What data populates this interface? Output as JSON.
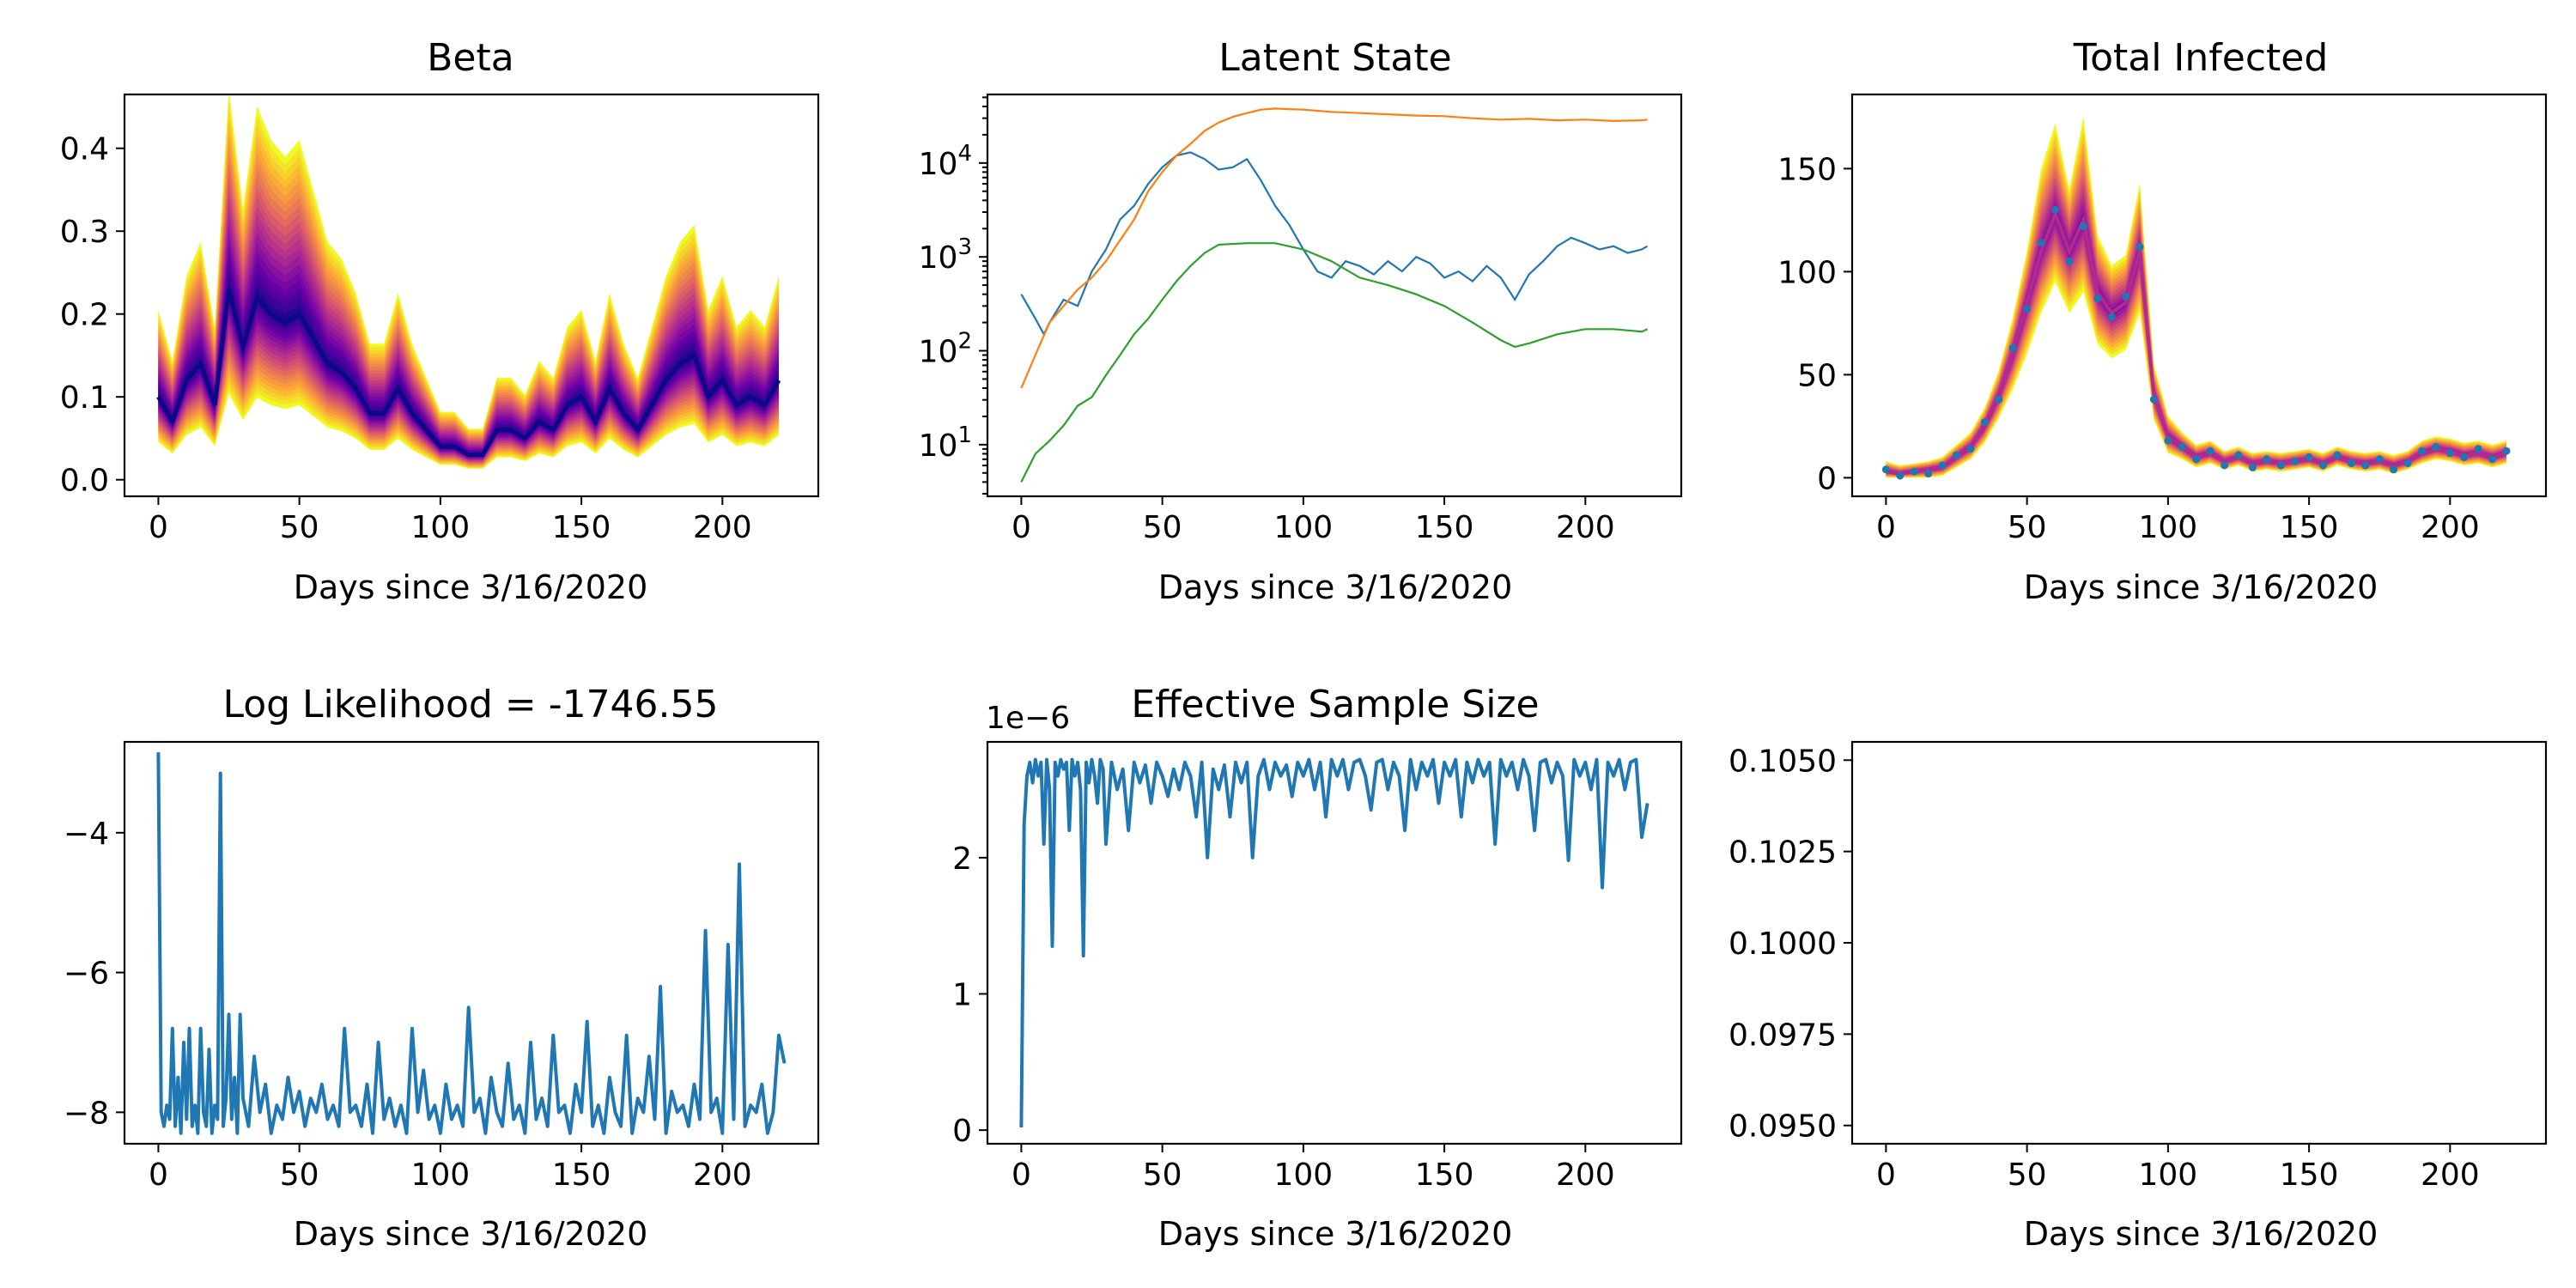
{
  "figure": {
    "panels": {
      "beta": {
        "title": "Beta",
        "xlabel": "Days since 3/16/2020"
      },
      "latent": {
        "title": "Latent State",
        "xlabel": "Days since 3/16/2020"
      },
      "infected": {
        "title": "Total Infected",
        "xlabel": "Days since 3/16/2020"
      },
      "loglik": {
        "title": "Log Likelihood = -1746.55",
        "xlabel": "Days since 3/16/2020"
      },
      "ess": {
        "title": "Effective Sample Size",
        "xlabel": "Days since 3/16/2020",
        "offset_label": "1e−6"
      },
      "empty": {
        "title": "",
        "xlabel": "Days since 3/16/2020"
      }
    }
  },
  "chart_data": [
    {
      "id": "beta",
      "type": "area",
      "title": "Beta",
      "xlabel": "Days since 3/16/2020",
      "ylabel": "",
      "xlim": [
        -12,
        234
      ],
      "ylim": [
        -0.02,
        0.465
      ],
      "xticks": [
        0,
        50,
        100,
        150,
        200
      ],
      "yticks": [
        0.0,
        0.1,
        0.2,
        0.3,
        0.4
      ],
      "ytick_labels": [
        "0.0",
        "0.1",
        "0.2",
        "0.3",
        "0.4"
      ],
      "colormap": [
        "#0d0887",
        "#6a00a8",
        "#b12a90",
        "#e16462",
        "#fca636",
        "#f0f921"
      ],
      "band_scale": {
        "lower_frac": 0.55,
        "upper_frac": 1.05
      },
      "x": [
        0,
        5,
        10,
        15,
        20,
        25,
        30,
        35,
        40,
        45,
        50,
        55,
        60,
        65,
        70,
        75,
        80,
        85,
        90,
        95,
        100,
        105,
        110,
        115,
        120,
        125,
        130,
        135,
        140,
        145,
        150,
        155,
        160,
        165,
        170,
        175,
        180,
        185,
        190,
        195,
        200,
        205,
        210,
        215,
        220
      ],
      "median": [
        0.1,
        0.07,
        0.12,
        0.14,
        0.09,
        0.23,
        0.16,
        0.22,
        0.2,
        0.19,
        0.2,
        0.17,
        0.14,
        0.13,
        0.11,
        0.08,
        0.08,
        0.11,
        0.08,
        0.06,
        0.04,
        0.04,
        0.03,
        0.03,
        0.06,
        0.06,
        0.05,
        0.07,
        0.06,
        0.09,
        0.1,
        0.07,
        0.11,
        0.08,
        0.06,
        0.09,
        0.12,
        0.14,
        0.15,
        0.1,
        0.12,
        0.09,
        0.1,
        0.09,
        0.12
      ]
    },
    {
      "id": "latent",
      "type": "line",
      "title": "Latent State",
      "xlabel": "Days since 3/16/2020",
      "ylabel": "",
      "yscale": "log",
      "xlim": [
        -12,
        234
      ],
      "ylim_log10": [
        0.45,
        4.73
      ],
      "xticks": [
        0,
        50,
        100,
        150,
        200
      ],
      "yticks": [
        1,
        2,
        3,
        4
      ],
      "ytick_labels": [
        "10^1",
        "10^2",
        "10^3",
        "10^4"
      ],
      "series": [
        {
          "color": "#1f77b4",
          "x": [
            0,
            5,
            8,
            10,
            15,
            20,
            25,
            30,
            35,
            40,
            45,
            50,
            55,
            60,
            65,
            70,
            75,
            80,
            85,
            90,
            95,
            100,
            105,
            110,
            115,
            120,
            125,
            130,
            135,
            140,
            145,
            150,
            155,
            160,
            165,
            170,
            175,
            180,
            185,
            190,
            195,
            200,
            205,
            210,
            215,
            220,
            222
          ],
          "y": [
            400,
            220,
            150,
            200,
            350,
            300,
            700,
            1200,
            2500,
            3500,
            6000,
            9000,
            12000,
            13000,
            11000,
            8500,
            9000,
            11000,
            6500,
            3500,
            2200,
            1200,
            700,
            600,
            900,
            800,
            650,
            900,
            700,
            1000,
            850,
            600,
            700,
            550,
            800,
            600,
            350,
            650,
            900,
            1300,
            1600,
            1400,
            1200,
            1300,
            1100,
            1200,
            1300
          ]
        },
        {
          "color": "#ff7f0e",
          "x": [
            0,
            5,
            10,
            15,
            20,
            25,
            30,
            35,
            40,
            45,
            50,
            55,
            60,
            65,
            70,
            75,
            80,
            85,
            90,
            95,
            100,
            110,
            120,
            130,
            140,
            150,
            160,
            170,
            180,
            190,
            200,
            210,
            220,
            222
          ],
          "y": [
            40,
            90,
            200,
            300,
            450,
            600,
            900,
            1500,
            2500,
            5000,
            8000,
            12000,
            16000,
            22000,
            27000,
            31000,
            34000,
            37000,
            38000,
            37500,
            37000,
            35000,
            34000,
            33000,
            32000,
            31500,
            30000,
            29000,
            29500,
            28500,
            29000,
            28000,
            28500,
            29000
          ]
        },
        {
          "color": "#2ca02c",
          "x": [
            0,
            5,
            10,
            15,
            20,
            25,
            30,
            35,
            40,
            45,
            50,
            55,
            60,
            65,
            70,
            80,
            90,
            100,
            110,
            120,
            130,
            140,
            150,
            160,
            170,
            175,
            180,
            190,
            200,
            210,
            220,
            222
          ],
          "y": [
            4,
            8,
            11,
            16,
            26,
            32,
            55,
            90,
            150,
            220,
            350,
            550,
            800,
            1100,
            1350,
            1400,
            1400,
            1200,
            900,
            600,
            500,
            400,
            300,
            200,
            130,
            110,
            120,
            150,
            170,
            170,
            160,
            170
          ]
        }
      ]
    },
    {
      "id": "infected",
      "type": "line",
      "title": "Total Infected",
      "xlabel": "Days since 3/16/2020",
      "ylabel": "",
      "xlim": [
        -12,
        234
      ],
      "ylim": [
        -9,
        186
      ],
      "xticks": [
        0,
        50,
        100,
        150,
        200
      ],
      "yticks": [
        0,
        50,
        100,
        150
      ],
      "ytick_labels": [
        "0",
        "50",
        "100",
        "150"
      ],
      "band_color_inner": "#b12a90",
      "band_color_outer": "#f0f921",
      "point_color": "#1f77b4",
      "x": [
        0,
        5,
        10,
        15,
        20,
        25,
        30,
        35,
        40,
        45,
        50,
        55,
        60,
        65,
        70,
        75,
        80,
        85,
        90,
        95,
        100,
        105,
        110,
        115,
        120,
        125,
        130,
        135,
        140,
        145,
        150,
        155,
        160,
        165,
        170,
        175,
        180,
        185,
        190,
        195,
        200,
        205,
        210,
        215,
        220
      ],
      "mean": [
        3,
        2,
        3,
        4,
        5,
        10,
        15,
        25,
        40,
        60,
        85,
        110,
        128,
        110,
        125,
        90,
        80,
        85,
        110,
        40,
        20,
        15,
        10,
        12,
        8,
        10,
        7,
        8,
        7,
        8,
        9,
        7,
        10,
        8,
        7,
        8,
        6,
        8,
        12,
        14,
        13,
        11,
        12,
        10,
        12
      ],
      "upper": [
        8,
        6,
        7,
        8,
        10,
        16,
        22,
        34,
        52,
        78,
        110,
        150,
        172,
        140,
        175,
        118,
        103,
        108,
        143,
        55,
        30,
        22,
        16,
        18,
        13,
        15,
        12,
        13,
        12,
        13,
        14,
        12,
        15,
        13,
        12,
        13,
        11,
        13,
        18,
        20,
        19,
        17,
        18,
        16,
        18
      ],
      "lower": [
        0,
        0,
        0,
        0,
        1,
        5,
        9,
        17,
        29,
        43,
        60,
        80,
        95,
        80,
        90,
        65,
        58,
        62,
        80,
        28,
        12,
        9,
        5,
        7,
        4,
        6,
        3,
        4,
        3,
        4,
        5,
        3,
        6,
        4,
        3,
        4,
        2,
        4,
        7,
        9,
        8,
        6,
        7,
        5,
        7
      ],
      "observed": [
        4,
        1,
        3,
        2,
        6,
        11,
        14,
        27,
        38,
        63,
        82,
        114,
        130,
        105,
        122,
        87,
        78,
        88,
        112,
        38,
        18,
        15,
        9,
        13,
        6,
        11,
        5,
        9,
        6,
        8,
        10,
        6,
        11,
        7,
        6,
        9,
        4,
        7,
        13,
        15,
        12,
        10,
        14,
        9,
        13
      ]
    },
    {
      "id": "loglik",
      "type": "line",
      "title": "Log Likelihood = -1746.55",
      "xlabel": "Days since 3/16/2020",
      "ylabel": "",
      "xlim": [
        -12,
        234
      ],
      "ylim": [
        -8.45,
        -2.7
      ],
      "xticks": [
        0,
        50,
        100,
        150,
        200
      ],
      "yticks": [
        -4,
        -6,
        -8
      ],
      "ytick_labels": [
        "−4",
        "−6",
        "−8"
      ],
      "color": "#1f77b4",
      "x": [
        0,
        1,
        2,
        3,
        4,
        5,
        6,
        7,
        8,
        9,
        10,
        11,
        12,
        13,
        14,
        15,
        16,
        17,
        18,
        19,
        20,
        21,
        22,
        23,
        24,
        25,
        26,
        27,
        28,
        29,
        30,
        32,
        34,
        36,
        38,
        40,
        42,
        44,
        46,
        48,
        50,
        52,
        54,
        56,
        58,
        60,
        62,
        64,
        66,
        68,
        70,
        72,
        74,
        76,
        78,
        80,
        82,
        84,
        86,
        88,
        90,
        92,
        94,
        96,
        98,
        100,
        102,
        104,
        106,
        108,
        110,
        112,
        114,
        116,
        118,
        120,
        122,
        124,
        126,
        128,
        130,
        132,
        134,
        136,
        138,
        140,
        142,
        144,
        146,
        148,
        150,
        152,
        154,
        156,
        158,
        160,
        162,
        164,
        166,
        168,
        170,
        172,
        174,
        176,
        178,
        180,
        182,
        184,
        186,
        188,
        190,
        192,
        194,
        196,
        198,
        200,
        202,
        204,
        206,
        208,
        210,
        212,
        214,
        216,
        218,
        220,
        222
      ],
      "y": [
        -2.85,
        -8.0,
        -8.2,
        -7.9,
        -8.1,
        -6.8,
        -8.2,
        -7.5,
        -8.3,
        -7.0,
        -8.1,
        -6.8,
        -8.2,
        -7.9,
        -8.3,
        -6.8,
        -8.0,
        -8.2,
        -7.1,
        -8.3,
        -7.9,
        -8.1,
        -3.15,
        -8.2,
        -7.8,
        -6.6,
        -8.1,
        -7.5,
        -8.3,
        -6.6,
        -7.8,
        -8.2,
        -7.2,
        -8.0,
        -7.6,
        -8.3,
        -7.9,
        -8.1,
        -7.5,
        -8.0,
        -7.7,
        -8.2,
        -7.8,
        -8.0,
        -7.6,
        -8.1,
        -7.9,
        -8.2,
        -6.8,
        -8.0,
        -7.9,
        -8.2,
        -7.6,
        -8.3,
        -7.0,
        -8.1,
        -7.8,
        -8.2,
        -7.9,
        -8.3,
        -6.8,
        -8.0,
        -7.4,
        -8.1,
        -7.9,
        -8.3,
        -7.6,
        -8.1,
        -7.9,
        -8.2,
        -6.5,
        -8.0,
        -7.8,
        -8.3,
        -7.5,
        -8.0,
        -8.2,
        -7.3,
        -8.1,
        -7.9,
        -8.3,
        -7.0,
        -8.1,
        -7.8,
        -8.2,
        -6.9,
        -8.0,
        -7.9,
        -8.3,
        -7.6,
        -8.0,
        -6.7,
        -8.2,
        -7.9,
        -8.3,
        -7.5,
        -8.0,
        -8.2,
        -6.9,
        -8.3,
        -7.8,
        -8.0,
        -7.2,
        -8.1,
        -6.2,
        -8.3,
        -7.7,
        -8.0,
        -7.9,
        -8.2,
        -7.6,
        -8.1,
        -5.4,
        -8.0,
        -7.8,
        -8.3,
        -5.6,
        -8.1,
        -4.45,
        -8.2,
        -7.9,
        -8.0,
        -7.6,
        -8.3,
        -8.0,
        -6.9,
        -7.3
      ]
    },
    {
      "id": "ess",
      "type": "line",
      "title": "Effective Sample Size",
      "xlabel": "Days since 3/16/2020",
      "ylabel": "",
      "xlim": [
        -12,
        234
      ],
      "ylim": [
        -0.1,
        2.85
      ],
      "y_scale_label": "1e−6",
      "xticks": [
        0,
        50,
        100,
        150,
        200
      ],
      "yticks": [
        0,
        1,
        2
      ],
      "ytick_labels": [
        "0",
        "1",
        "2"
      ],
      "color": "#1f77b4",
      "x": [
        0,
        1,
        2,
        3,
        4,
        5,
        6,
        7,
        8,
        9,
        10,
        11,
        12,
        13,
        14,
        15,
        16,
        17,
        18,
        19,
        20,
        21,
        22,
        23,
        24,
        25,
        26,
        27,
        28,
        29,
        30,
        32,
        34,
        36,
        38,
        40,
        42,
        44,
        46,
        48,
        50,
        52,
        54,
        56,
        58,
        60,
        62,
        64,
        66,
        68,
        70,
        72,
        74,
        76,
        78,
        80,
        82,
        84,
        86,
        88,
        90,
        92,
        94,
        96,
        98,
        100,
        102,
        104,
        106,
        108,
        110,
        112,
        114,
        116,
        118,
        120,
        122,
        124,
        126,
        128,
        130,
        132,
        134,
        136,
        138,
        140,
        142,
        144,
        146,
        148,
        150,
        152,
        154,
        156,
        158,
        160,
        162,
        164,
        166,
        168,
        170,
        172,
        174,
        176,
        178,
        180,
        182,
        184,
        186,
        188,
        190,
        192,
        194,
        196,
        198,
        200,
        202,
        204,
        206,
        208,
        210,
        212,
        214,
        216,
        218,
        220,
        222
      ],
      "y": [
        0.02,
        2.25,
        2.6,
        2.7,
        2.55,
        2.72,
        2.6,
        2.7,
        2.1,
        2.72,
        2.5,
        1.35,
        2.7,
        2.6,
        2.72,
        2.65,
        2.7,
        2.2,
        2.72,
        2.6,
        2.7,
        2.5,
        1.28,
        2.7,
        2.55,
        2.72,
        2.6,
        2.4,
        2.72,
        2.65,
        2.1,
        2.7,
        2.5,
        2.65,
        2.2,
        2.7,
        2.55,
        2.68,
        2.4,
        2.7,
        2.6,
        2.45,
        2.65,
        2.5,
        2.7,
        2.6,
        2.3,
        2.7,
        2.0,
        2.65,
        2.5,
        2.68,
        2.3,
        2.7,
        2.55,
        2.7,
        2.0,
        2.6,
        2.72,
        2.5,
        2.7,
        2.6,
        2.68,
        2.45,
        2.7,
        2.6,
        2.72,
        2.5,
        2.7,
        2.3,
        2.72,
        2.6,
        2.72,
        2.5,
        2.7,
        2.72,
        2.6,
        2.35,
        2.7,
        2.72,
        2.5,
        2.7,
        2.6,
        2.2,
        2.72,
        2.5,
        2.7,
        2.6,
        2.72,
        2.4,
        2.7,
        2.6,
        2.72,
        2.3,
        2.7,
        2.55,
        2.72,
        2.6,
        2.7,
        2.1,
        2.72,
        2.6,
        2.7,
        2.5,
        2.72,
        2.6,
        2.2,
        2.7,
        2.72,
        2.55,
        2.7,
        2.6,
        1.98,
        2.72,
        2.6,
        2.7,
        2.5,
        2.72,
        1.78,
        2.7,
        2.6,
        2.72,
        2.5,
        2.7,
        2.72,
        2.15,
        2.4
      ]
    },
    {
      "id": "empty",
      "type": "line",
      "title": "",
      "xlabel": "Days since 3/16/2020",
      "ylabel": "",
      "xlim": [
        -12,
        234
      ],
      "ylim": [
        0.0945,
        0.1055
      ],
      "xticks": [
        0,
        50,
        100,
        150,
        200
      ],
      "yticks": [
        0.095,
        0.0975,
        0.1,
        0.1025,
        0.105
      ],
      "ytick_labels": [
        "0.0950",
        "0.0975",
        "0.1000",
        "0.1025",
        "0.1050"
      ],
      "series": []
    }
  ]
}
